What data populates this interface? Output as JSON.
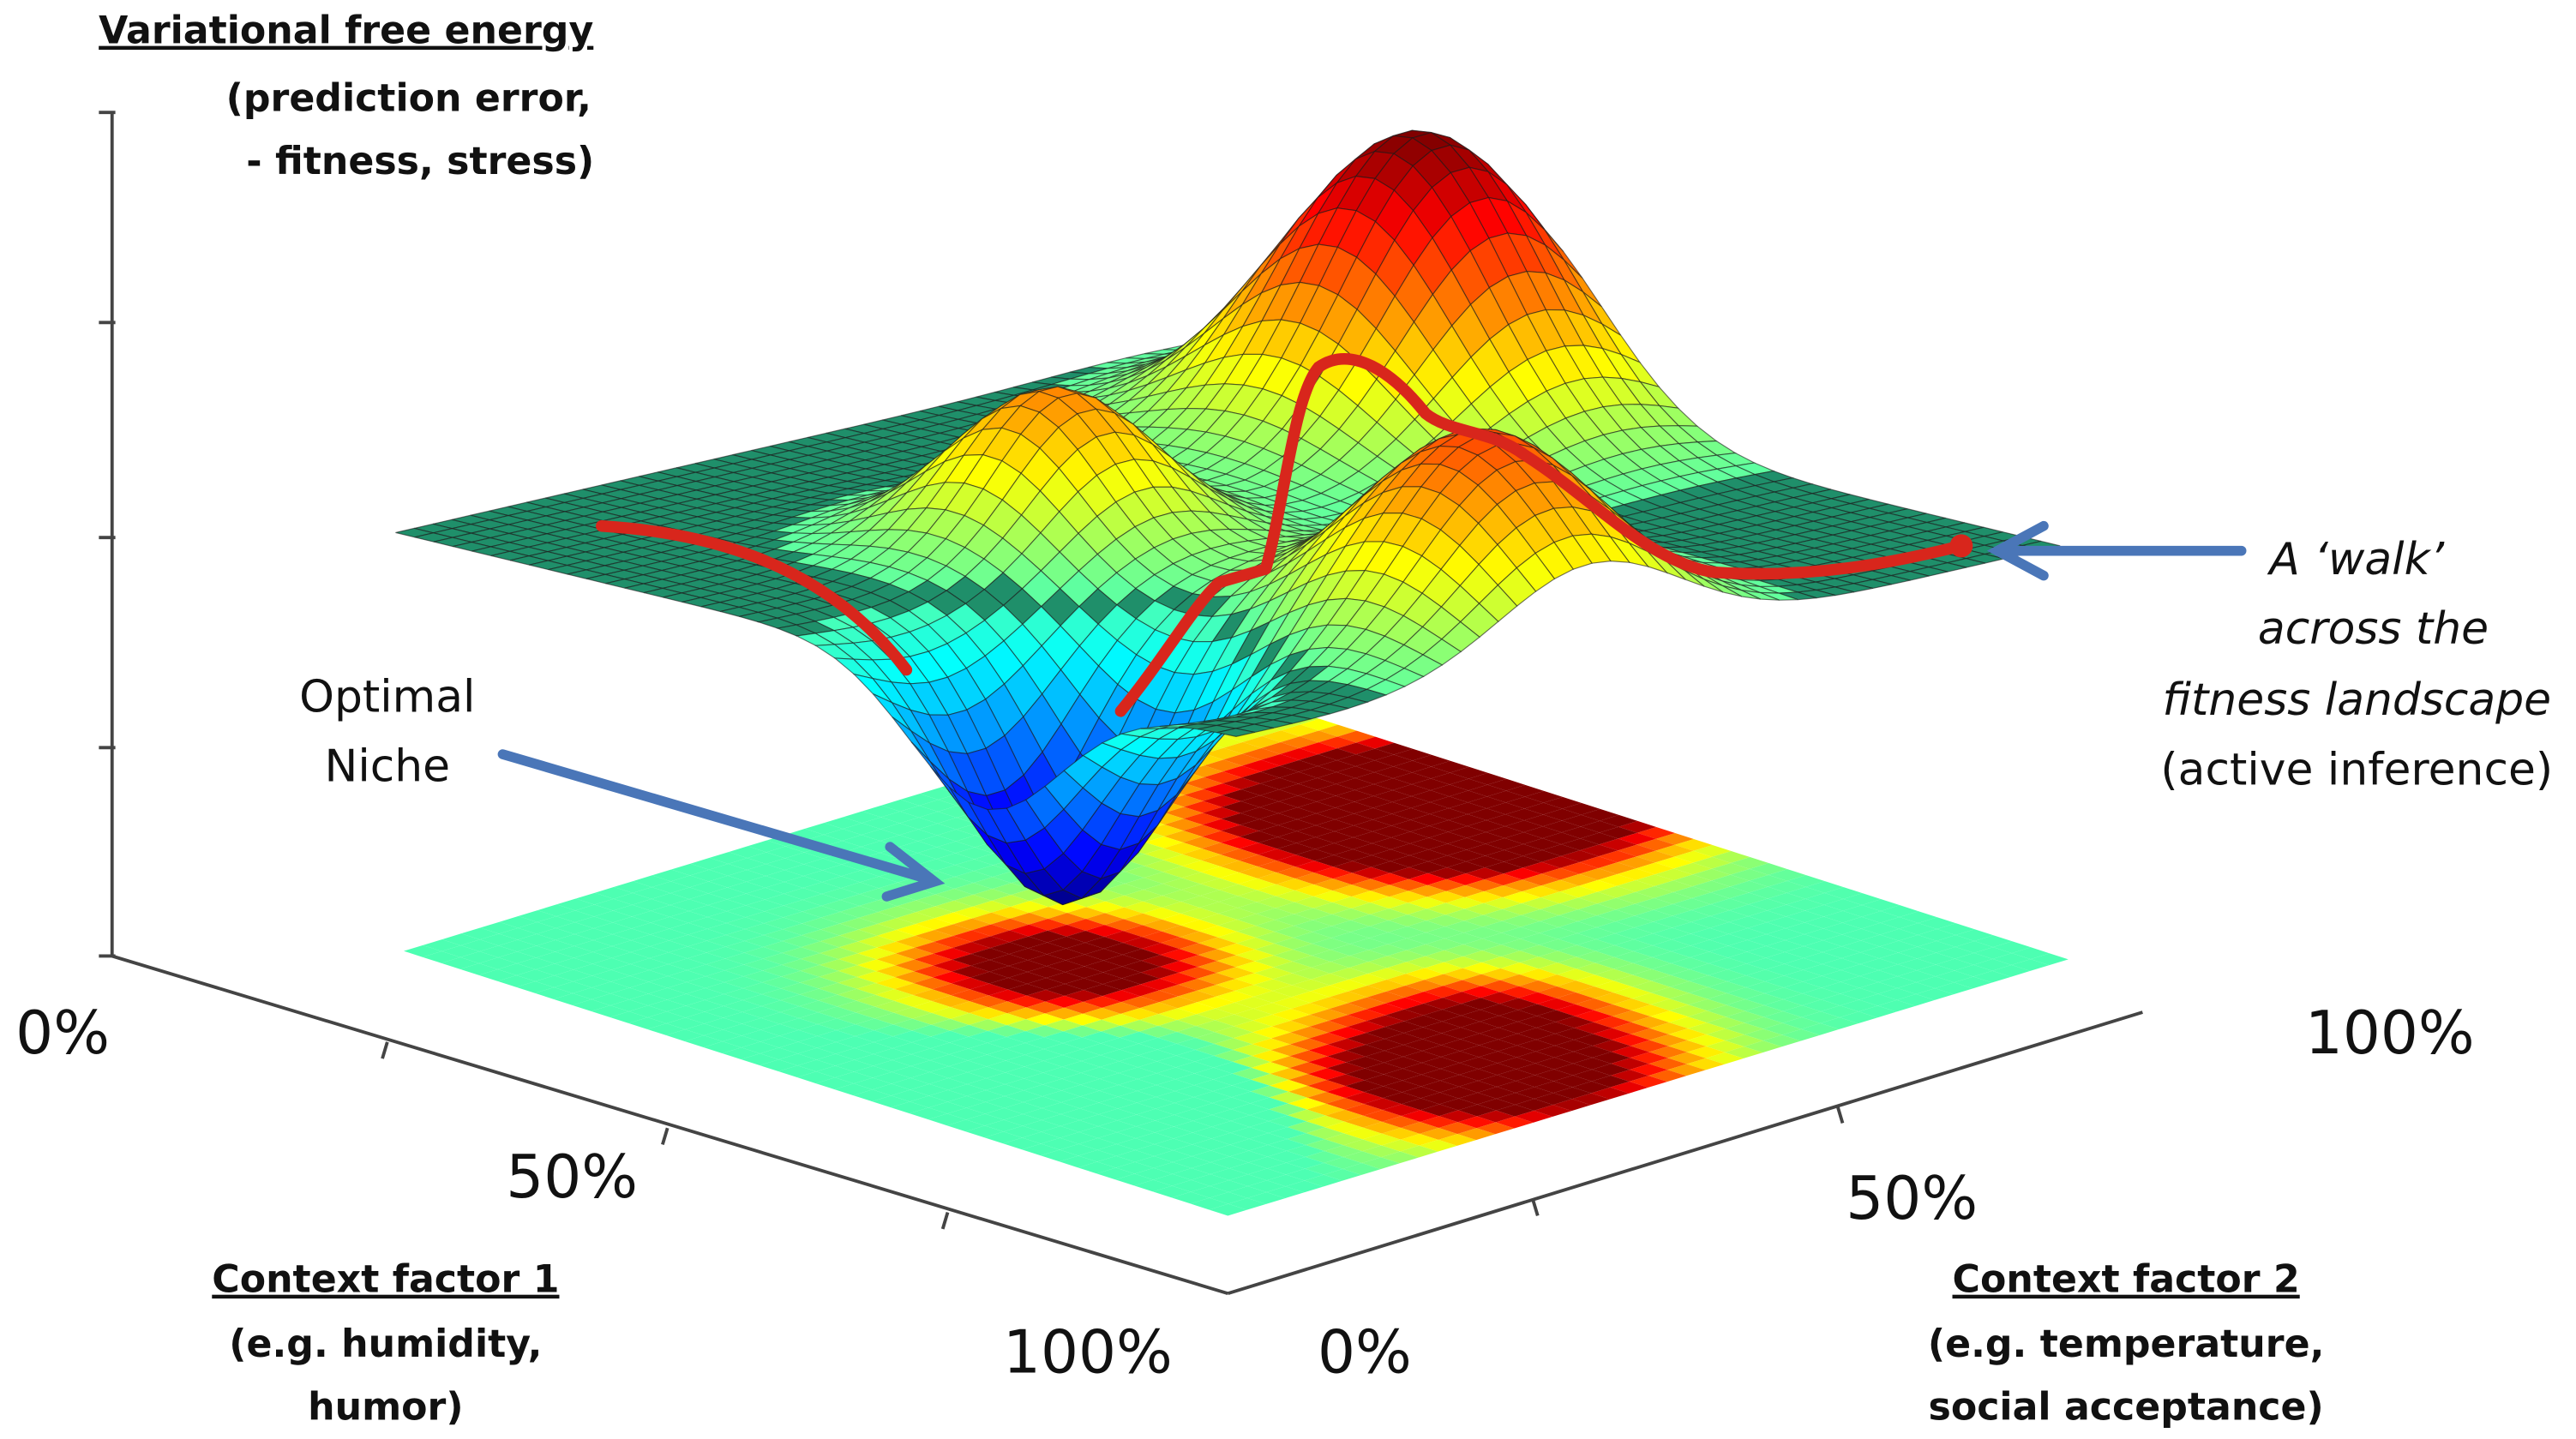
{
  "z_axis": {
    "title": "Variational free energy",
    "lines": [
      "(prediction error,",
      "- fitness, stress)"
    ]
  },
  "x_axis": {
    "title": "Context factor 1",
    "lines": [
      "(e.g. humidity,",
      "humor)"
    ],
    "ticks": [
      "0%",
      "50%",
      "100%"
    ]
  },
  "y_axis": {
    "title": "Context factor 2",
    "lines": [
      "(e.g. temperature,",
      "social acceptance)"
    ],
    "ticks": [
      "0%",
      "50%",
      "100%"
    ]
  },
  "niche_note": {
    "lines": [
      "Optimal",
      "Niche"
    ]
  },
  "walk_note": {
    "lines": [
      "A ‘walk’",
      "across the",
      "fitness landscape",
      "(active inference)"
    ]
  }
}
